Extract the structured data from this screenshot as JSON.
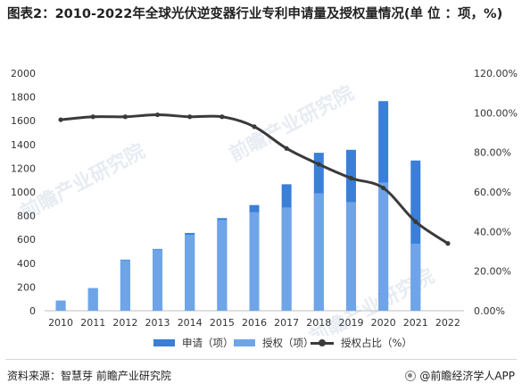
{
  "title": "图表2：2010-2022年全球光伏逆变器行业专利申请量及授权量情况(单 位 ：项，%)",
  "source": "资料来源：智慧芽 前瞻产业研究院",
  "brand": "@前瞻经济学人APP",
  "watermark": "前瞻产业研究院",
  "colors": {
    "application": "#3a7fd9",
    "granted": "#6fa5e8",
    "ratio": "#3a3a3a"
  },
  "chart_data": {
    "type": "bar",
    "categories": [
      "2010",
      "2011",
      "2012",
      "2013",
      "2014",
      "2015",
      "2016",
      "2017",
      "2018",
      "2019",
      "2020",
      "2021",
      "2022"
    ],
    "series": [
      {
        "name": "申请（项）",
        "type": "bar",
        "axis": "left",
        "values": [
          85,
          190,
          430,
          520,
          655,
          780,
          890,
          1065,
          1330,
          1355,
          1765,
          1265,
          0
        ]
      },
      {
        "name": "授权（项）",
        "type": "bar",
        "axis": "left",
        "values": [
          85,
          190,
          425,
          515,
          640,
          765,
          830,
          870,
          990,
          915,
          1080,
          565,
          0
        ]
      },
      {
        "name": "授权占比（%）",
        "type": "line",
        "axis": "right",
        "values": [
          96.5,
          98.0,
          98.0,
          99.0,
          98.0,
          98.0,
          93.0,
          82.0,
          74.0,
          67.0,
          62.0,
          45.0,
          34.0
        ]
      }
    ],
    "left_axis": {
      "ylim": [
        0,
        2000
      ],
      "ticks": [
        "0",
        "200",
        "400",
        "600",
        "800",
        "1000",
        "1200",
        "1400",
        "1600",
        "1800",
        "2000"
      ]
    },
    "right_axis": {
      "ylim": [
        0,
        120
      ],
      "ticks": [
        "0.00%",
        "20.00%",
        "40.00%",
        "60.00%",
        "80.00%",
        "100.00%",
        "120.00%"
      ]
    },
    "legend_position": "bottom",
    "grid": false
  }
}
